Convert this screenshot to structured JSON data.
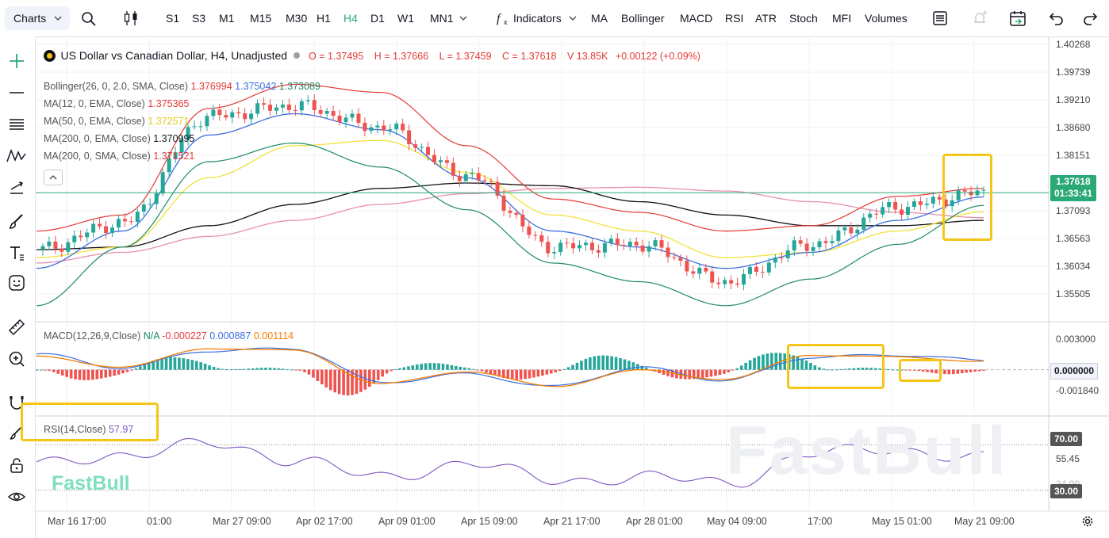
{
  "toolbar": {
    "charts_label": "Charts",
    "timeframes": [
      {
        "label": "S1",
        "active": false
      },
      {
        "label": "S3",
        "active": false
      },
      {
        "label": "M1",
        "active": false
      },
      {
        "label": "M15",
        "active": false
      },
      {
        "label": "M30",
        "active": false
      },
      {
        "label": "H1",
        "active": false
      },
      {
        "label": "H4",
        "active": true
      },
      {
        "label": "D1",
        "active": false
      },
      {
        "label": "W1",
        "active": false
      },
      {
        "label": "MN1",
        "active": false
      }
    ],
    "indicators_label": "Indicators",
    "quick_indicators": [
      "MA",
      "Bollinger",
      "MACD",
      "RSI",
      "ATR",
      "Stoch",
      "MFI",
      "Volumes"
    ]
  },
  "legend": {
    "symbol_title": "US Dollar vs Canadian Dollar, H4, Unadjusted",
    "open": "O = 1.37495",
    "high": "H = 1.37666",
    "low": "L = 1.37459",
    "close": "C = 1.37618",
    "volume": "V 13.85K",
    "change": "+0.00122 (+0.09%)",
    "bollinger": {
      "name": "Bollinger(26, 0, 2.0, SMA, Close)",
      "v1": "1.376994",
      "v2": "1.375042",
      "v3": "1.373089"
    },
    "ma1": {
      "name": "MA(12, 0, EMA, Close)",
      "value": "1.375365"
    },
    "ma2": {
      "name": "MA(50, 0, EMA, Close)",
      "value": "1.372571"
    },
    "ma3": {
      "name": "MA(200, 0, EMA, Close)",
      "value": "1.370995"
    },
    "ma4": {
      "name": "MA(200, 0, SMA, Close)",
      "value": "1.371521"
    }
  },
  "macd_legend": {
    "name": "MACD(12,26,9,Close)",
    "na": "N/A",
    "v1": "-0.000227",
    "v2": "0.000887",
    "v3": "0.001114"
  },
  "rsi_legend": {
    "name": "RSI(14,Close)",
    "value": "57.97"
  },
  "price_axis": [
    "1.40268",
    "1.39739",
    "1.39210",
    "1.38680",
    "1.38151",
    "1.37093",
    "1.36563",
    "1.36034",
    "1.35505"
  ],
  "price_tag": {
    "price": "1.37618",
    "countdown": "01:33:41"
  },
  "macd_axis": [
    "0.003000",
    "-0.001840"
  ],
  "macd_tag": "0.000000",
  "rsi_axis": [
    "55.45",
    "34.00"
  ],
  "rsi_tags": [
    "70.00",
    "30.00"
  ],
  "time_axis": [
    "Mar 16 17:00",
    "01:00",
    "Mar 27 09:00",
    "Apr 02 17:00",
    "Apr 09 01:00",
    "Apr 15 09:00",
    "Apr 21 17:00",
    "Apr 28 01:00",
    "May 04 09:00",
    "17:00",
    "May 15 01:00",
    "May 21 09:00"
  ],
  "watermark": "FastBull",
  "colors": {
    "accent": "#2aa876",
    "bull": "#26a69a",
    "bear": "#ef5350",
    "highlight": "#f5c518",
    "boll": "#e53935",
    "ma12": "#3a6fe0",
    "ma50": "#f2e23a",
    "ema200": "#111111",
    "sma200": "#e88fb0",
    "rsi": "#7e57c2",
    "price_tag": "#2aa876"
  },
  "chart_data": {
    "type": "line",
    "title": "US Dollar vs Canadian Dollar, H4, Unadjusted",
    "xlabel": "",
    "ylabel": "",
    "ylim": [
      1.352,
      1.404
    ],
    "categories": [
      "Mar 16 17:00",
      "01:00",
      "Mar 27 09:00",
      "Apr 02 17:00",
      "Apr 09 01:00",
      "Apr 15 09:00",
      "Apr 21 17:00",
      "Apr 28 01:00",
      "May 04 09:00",
      "17:00",
      "May 15 01:00",
      "May 21 09:00"
    ],
    "series": [
      {
        "name": "Close",
        "values": [
          1.3655,
          1.3705,
          1.3905,
          1.3925,
          1.3885,
          1.3795,
          1.366,
          1.3665,
          1.3595,
          1.3665,
          1.3735,
          1.3762
        ]
      },
      {
        "name": "Bollinger(26, 0, 2.0, SMA, Close)",
        "values": [
          1.369,
          1.372,
          1.392,
          1.3965,
          1.395,
          1.385,
          1.375,
          1.3725,
          1.369,
          1.37,
          1.3755,
          1.377
        ]
      },
      {
        "name": "MA(12, 0, EMA, Close)",
        "values": [
          1.362,
          1.369,
          1.387,
          1.391,
          1.388,
          1.379,
          1.369,
          1.366,
          1.362,
          1.365,
          1.371,
          1.3754
        ]
      },
      {
        "name": "MA(50, 0, EMA, Close)",
        "values": [
          1.364,
          1.366,
          1.379,
          1.385,
          1.386,
          1.38,
          1.372,
          1.369,
          1.364,
          1.365,
          1.369,
          1.3726
        ]
      },
      {
        "name": "MA(200, 0, EMA, Close)",
        "values": [
          1.3655,
          1.366,
          1.37,
          1.374,
          1.377,
          1.378,
          1.3775,
          1.3745,
          1.372,
          1.37,
          1.37,
          1.371
        ]
      },
      {
        "name": "MA(200, 0, SMA, Close)",
        "values": [
          1.363,
          1.365,
          1.368,
          1.371,
          1.374,
          1.376,
          1.377,
          1.3772,
          1.3765,
          1.3745,
          1.3725,
          1.3715
        ]
      }
    ],
    "rsi": [
      52,
      62,
      70,
      58,
      40,
      55,
      38,
      42,
      36,
      62,
      66,
      57.97
    ],
    "macd": [
      0.0015,
      0.0002,
      0.0018,
      0.002,
      -0.0012,
      -0.0004,
      -0.0016,
      0.0002,
      -0.001,
      0.0012,
      0.0014,
      0.0009
    ]
  }
}
